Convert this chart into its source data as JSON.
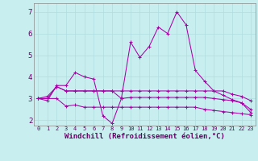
{
  "background_color": "#c8eef0",
  "grid_color": "#b0dde0",
  "line_color": "#aa00aa",
  "xlabel": "Windchill (Refroidissement éolien,°C)",
  "xlabel_fontsize": 6.5,
  "ytick_fontsize": 6.5,
  "xtick_fontsize": 5.0,
  "yticks": [
    2,
    3,
    4,
    5,
    6,
    7
  ],
  "xticks": [
    0,
    1,
    2,
    3,
    4,
    5,
    6,
    7,
    8,
    9,
    10,
    11,
    12,
    13,
    14,
    15,
    16,
    17,
    18,
    19,
    20,
    21,
    22,
    23
  ],
  "xlim": [
    -0.5,
    23.5
  ],
  "ylim": [
    1.75,
    7.4
  ],
  "lines": [
    [
      3.0,
      2.9,
      3.6,
      3.6,
      4.2,
      4.0,
      3.9,
      2.2,
      1.85,
      3.0,
      5.6,
      4.9,
      5.4,
      6.3,
      6.0,
      7.0,
      6.4,
      4.3,
      3.8,
      3.35,
      3.15,
      2.95,
      2.8,
      2.35
    ],
    [
      3.0,
      3.1,
      3.55,
      3.35,
      3.35,
      3.35,
      3.35,
      3.35,
      3.35,
      3.35,
      3.35,
      3.35,
      3.35,
      3.35,
      3.35,
      3.35,
      3.35,
      3.35,
      3.35,
      3.35,
      3.35,
      3.2,
      3.1,
      2.9
    ],
    [
      3.0,
      3.0,
      3.0,
      2.65,
      2.7,
      2.6,
      2.6,
      2.6,
      2.6,
      2.6,
      2.6,
      2.6,
      2.6,
      2.6,
      2.6,
      2.6,
      2.6,
      2.6,
      2.5,
      2.45,
      2.4,
      2.35,
      2.3,
      2.25
    ],
    [
      3.0,
      3.0,
      3.55,
      3.35,
      3.35,
      3.35,
      3.35,
      3.35,
      3.35,
      3.0,
      3.05,
      3.05,
      3.05,
      3.05,
      3.05,
      3.05,
      3.05,
      3.05,
      3.05,
      3.0,
      2.95,
      2.9,
      2.8,
      2.5
    ]
  ]
}
